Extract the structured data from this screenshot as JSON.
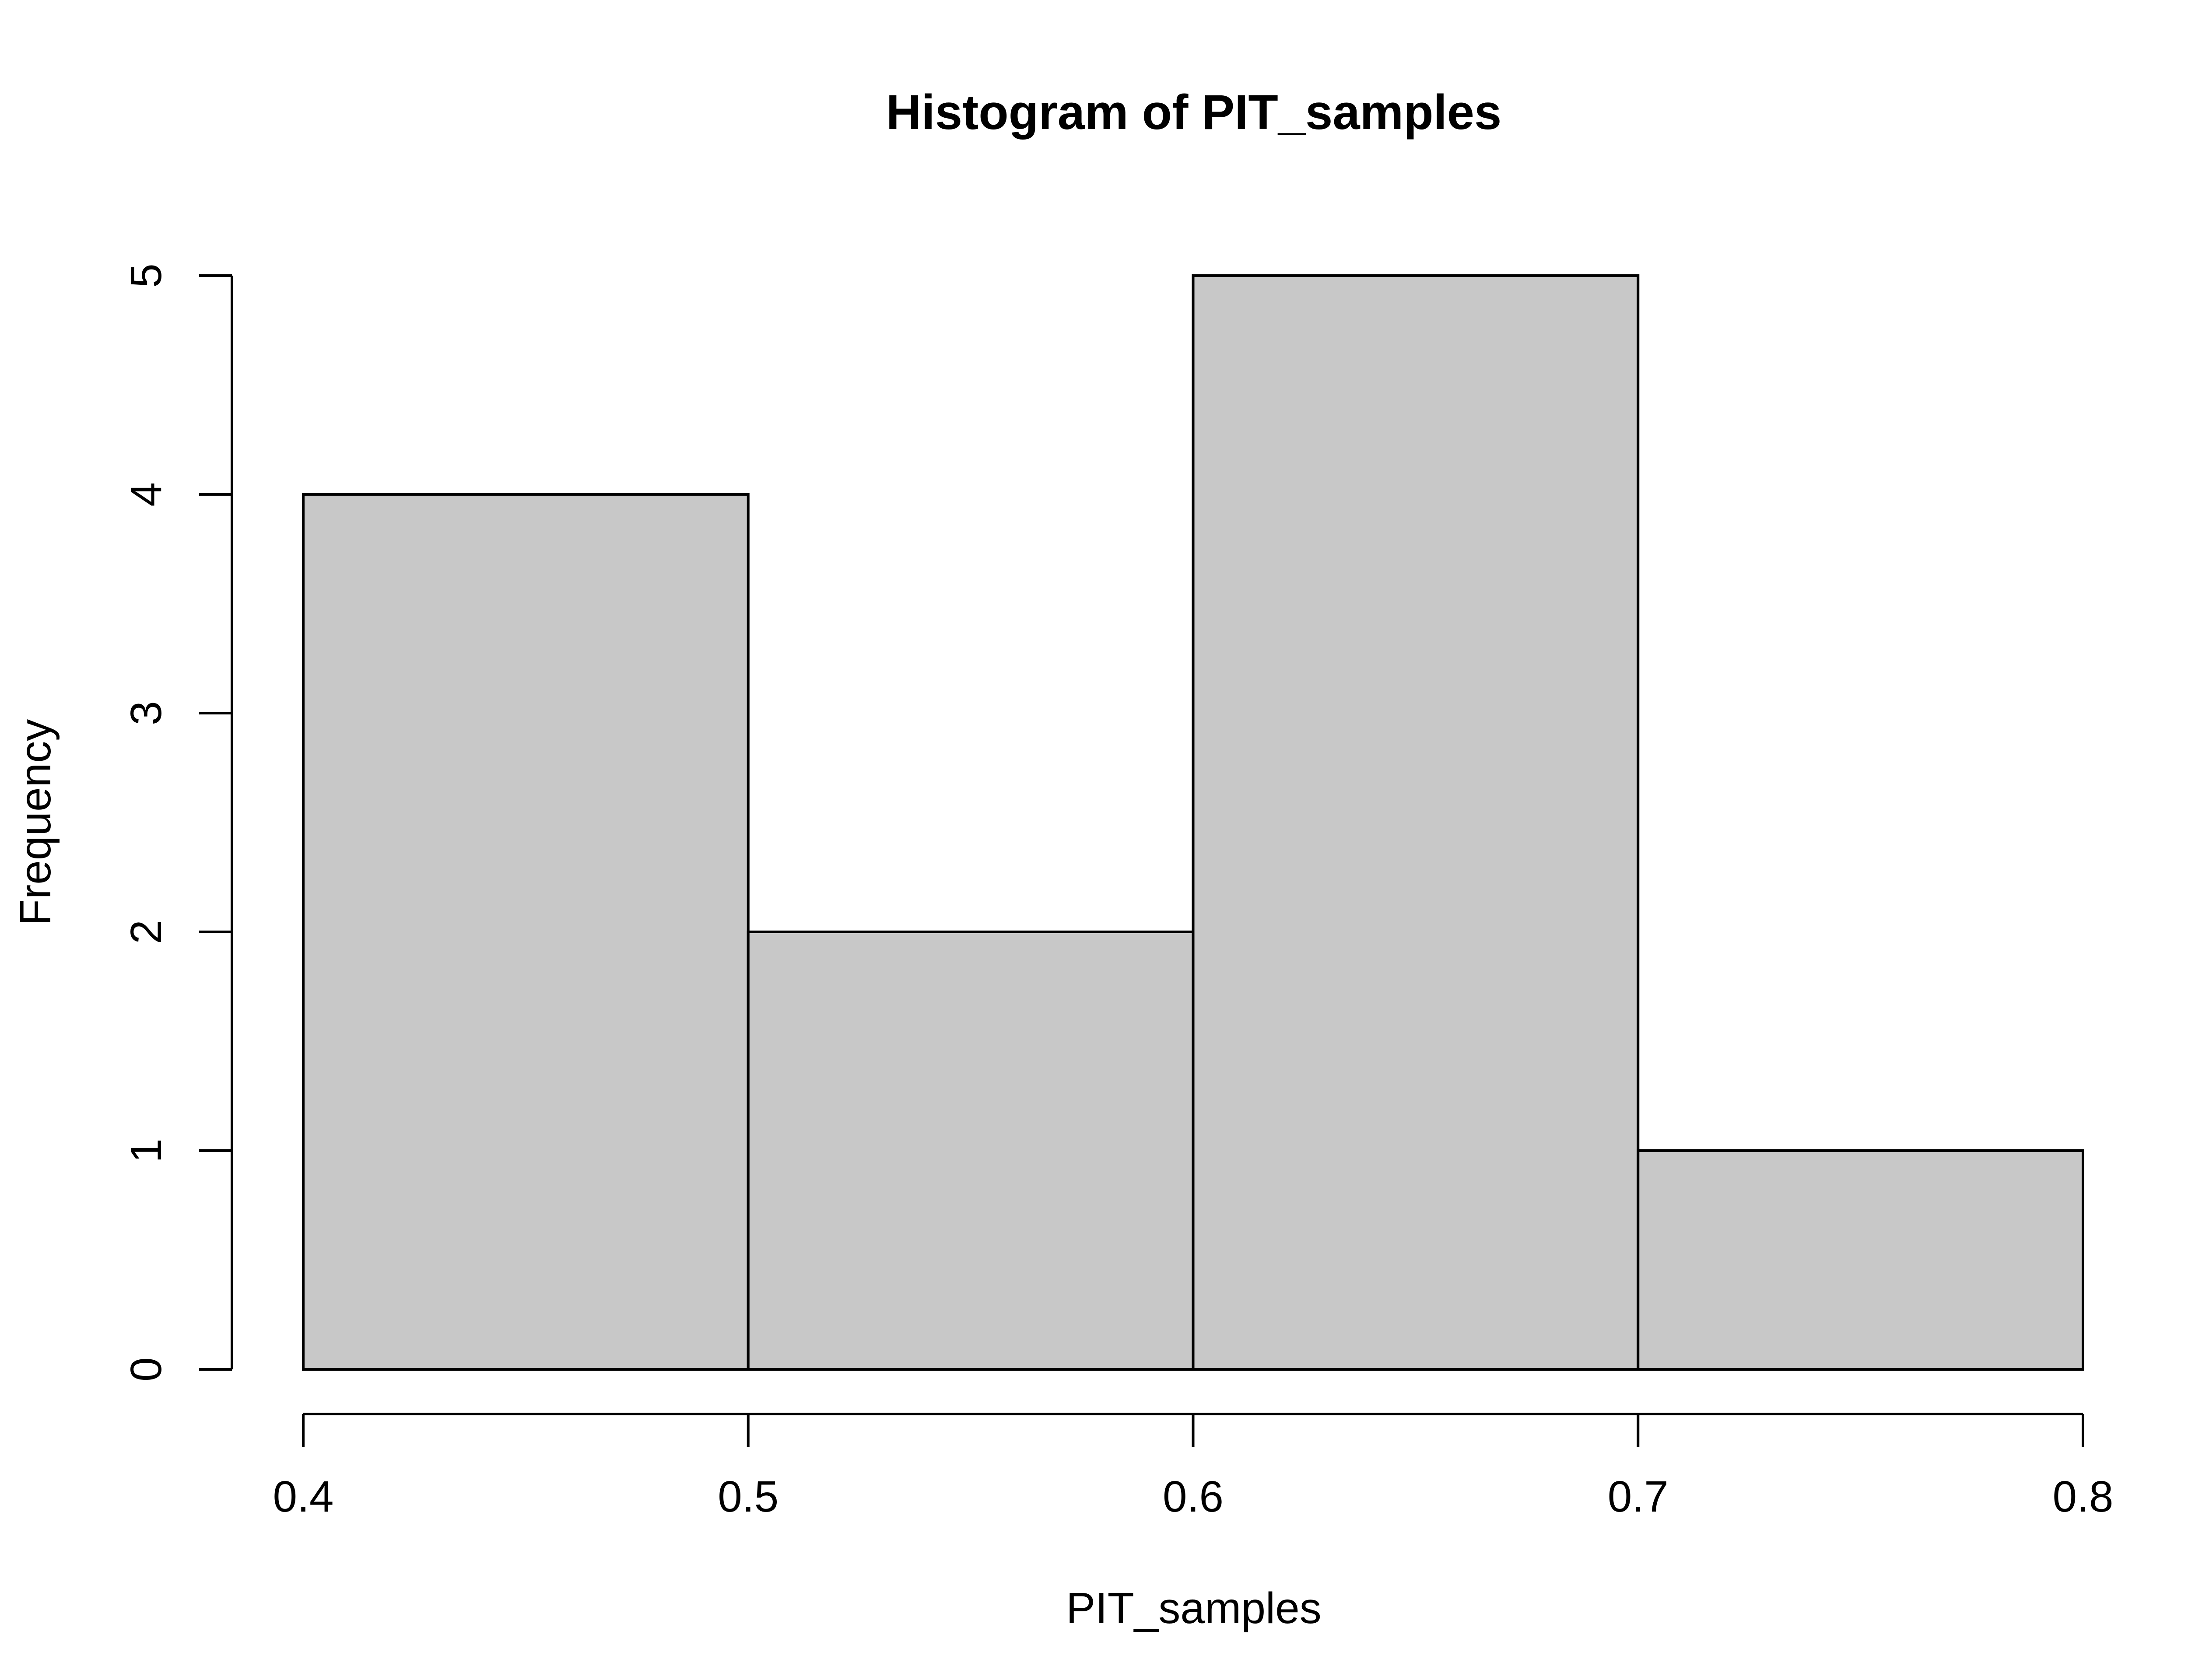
{
  "chart_data": {
    "type": "bar",
    "subtype": "histogram",
    "title": "Histogram of PIT_samples",
    "xlabel": "PIT_samples",
    "ylabel": "Frequency",
    "bins": [
      {
        "start": 0.4,
        "end": 0.5,
        "count": 4
      },
      {
        "start": 0.5,
        "end": 0.6,
        "count": 2
      },
      {
        "start": 0.6,
        "end": 0.7,
        "count": 5
      },
      {
        "start": 0.7,
        "end": 0.8,
        "count": 1
      }
    ],
    "xlim": [
      0.4,
      0.8
    ],
    "ylim": [
      0,
      5
    ],
    "x_ticks": [
      "0.4",
      "0.5",
      "0.6",
      "0.7",
      "0.8"
    ],
    "y_ticks": [
      "0",
      "1",
      "2",
      "3",
      "4",
      "5"
    ],
    "bar_color": "#c8c8c8",
    "grid": false
  }
}
